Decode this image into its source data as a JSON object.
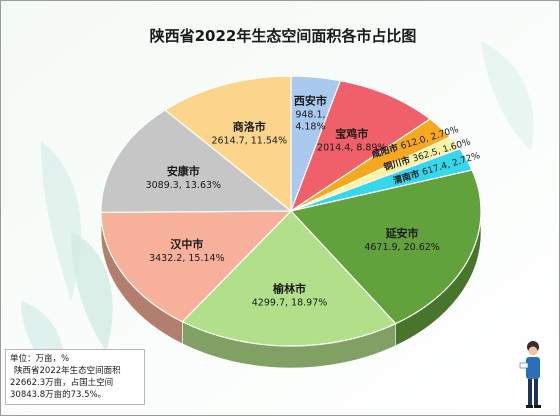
{
  "chart_data": {
    "type": "pie",
    "title": "陕西省2022年生态空间面积各市占比图",
    "slices": [
      {
        "name": "西安市",
        "value": 948.1,
        "percent": 4.18,
        "color": "#a9c9ee",
        "value_label": "948.1,",
        "percent_label": "4.18%"
      },
      {
        "name": "宝鸡市",
        "value": 2014.4,
        "percent": 8.89,
        "color": "#f0606a",
        "value_label": "2014.4, 8.89%"
      },
      {
        "name": "咸阳市",
        "value": 612.0,
        "percent": 2.7,
        "color": "#f6a81f",
        "value_label": "612.0, 2.70%"
      },
      {
        "name": "铜川市",
        "value": 362.5,
        "percent": 1.6,
        "color": "#fbf3a4",
        "value_label": "362.5, 1.60%"
      },
      {
        "name": "渭南市",
        "value": 617.4,
        "percent": 2.72,
        "color": "#35d7ea",
        "value_label": "617.4, 2.72%"
      },
      {
        "name": "延安市",
        "value": 4671.9,
        "percent": 20.62,
        "color": "#62a23c",
        "value_label": "4671.9, 20.62%"
      },
      {
        "name": "榆林市",
        "value": 4299.7,
        "percent": 18.97,
        "color": "#b2e08a",
        "value_label": "4299.7, 18.97%"
      },
      {
        "name": "汉中市",
        "value": 3432.2,
        "percent": 15.14,
        "color": "#f7b19a",
        "value_label": "3432.2, 15.14%"
      },
      {
        "name": "安康市",
        "value": 3089.3,
        "percent": 13.63,
        "color": "#c6c6c6",
        "value_label": "3089.3, 13.63%"
      },
      {
        "name": "商洛市",
        "value": 2614.7,
        "percent": 11.54,
        "color": "#fcd58c",
        "value_label": "2614.7, 11.54%"
      }
    ]
  },
  "note": {
    "unit": "单位：万亩，%",
    "text": "陕西省2022年生态空间面积22662.3万亩，占国土空间30843.8万亩的73.5%。"
  }
}
